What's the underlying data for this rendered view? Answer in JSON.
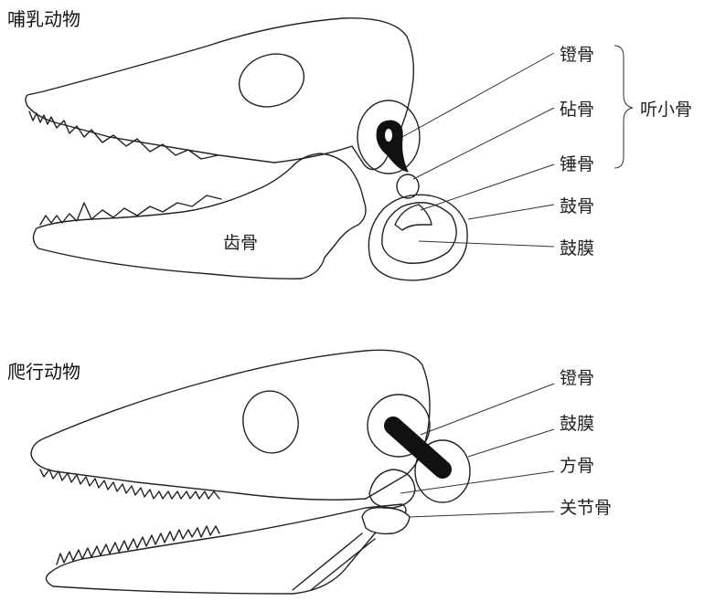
{
  "mammal": {
    "title": "哺乳动物",
    "labels": {
      "stapes": "镫骨",
      "incus": "砧骨",
      "malleus": "锤骨",
      "tympanic": "鼓骨",
      "eardrum": "鼓膜",
      "dentary": "齿骨",
      "ossicles": "听小骨"
    }
  },
  "reptile": {
    "title": "爬行动物",
    "labels": {
      "stapes": "镫骨",
      "eardrum": "鼓膜",
      "quadrate": "方骨",
      "articular": "关节骨"
    }
  }
}
